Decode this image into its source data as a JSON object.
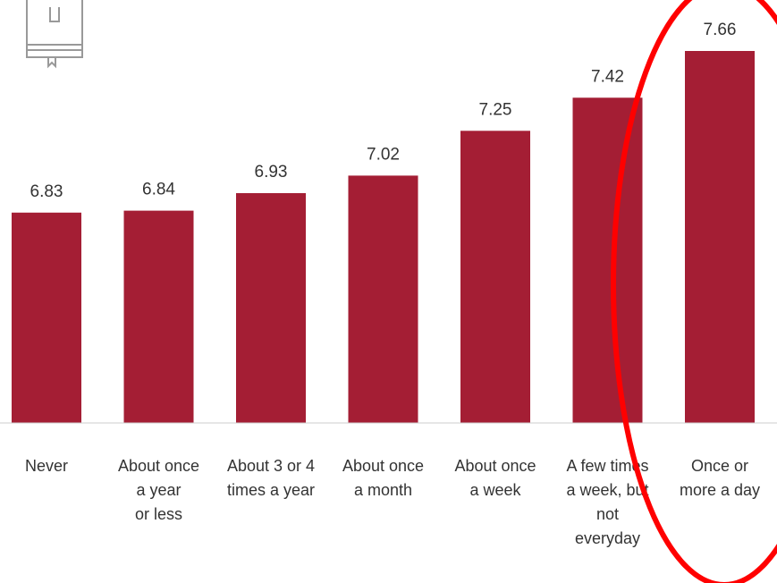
{
  "chart_data": {
    "type": "bar",
    "categories": [
      [
        "Never"
      ],
      [
        "About once",
        "a year",
        "or less"
      ],
      [
        "About 3 or 4",
        "times a year"
      ],
      [
        "About once",
        "a month"
      ],
      [
        "About once",
        "a week"
      ],
      [
        "A few times",
        "a week, but",
        "not",
        "everyday"
      ],
      [
        "Once or",
        "more a day"
      ]
    ],
    "values": [
      6.83,
      6.84,
      6.93,
      7.02,
      7.25,
      7.42,
      7.66
    ],
    "value_labels": [
      "6.83",
      "6.84",
      "6.93",
      "7.02",
      "7.25",
      "7.42",
      "7.66"
    ],
    "ylim": [
      5.75,
      7.66
    ],
    "grid": false,
    "legend": "none"
  },
  "colors": {
    "bar": "#A41E34",
    "baseline": "#CCCCCC",
    "highlight_ellipse": "#FF0000",
    "text": "#333333",
    "icon": "#999999"
  },
  "annotation": {
    "type": "ellipse",
    "target_category_index": 6
  },
  "icon": "book-icon"
}
